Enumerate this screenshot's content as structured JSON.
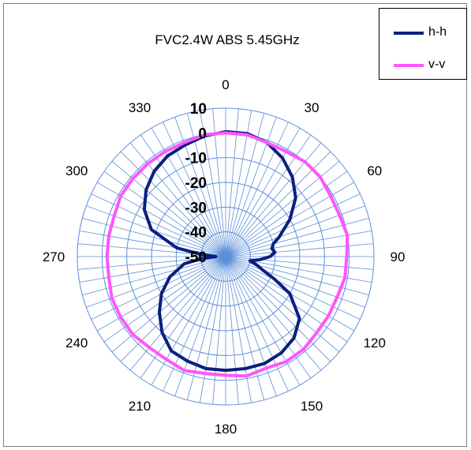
{
  "chart_data": {
    "type": "polar-line",
    "title": "FVC2.4W ABS 5.45GHz",
    "angle_labels": [
      "0",
      "30",
      "60",
      "90",
      "120",
      "150",
      "180",
      "210",
      "240",
      "270",
      "300",
      "330"
    ],
    "radial_labels": [
      "10",
      "0",
      "-10",
      "-20",
      "-30",
      "-40",
      "-50"
    ],
    "radial_range": [
      -50,
      10
    ],
    "grid": true,
    "legend_position": "top-right",
    "series": [
      {
        "name": "h-h",
        "color": "#0b1f7e",
        "angles": [
          0,
          10,
          20,
          30,
          40,
          50,
          60,
          70,
          75,
          80,
          85,
          90,
          95,
          100,
          105,
          110,
          115,
          120,
          130,
          140,
          150,
          160,
          170,
          180,
          190,
          200,
          210,
          220,
          230,
          240,
          250,
          260,
          265,
          270,
          275,
          280,
          290,
          300,
          310,
          320,
          330,
          340,
          350
        ],
        "values": [
          0.5,
          0.5,
          -1,
          -4,
          -8,
          -13,
          -20,
          -27,
          -30,
          -31,
          -30,
          -32,
          -36,
          -40,
          -37,
          -34,
          -28,
          -20,
          -11,
          -7,
          -5,
          -4,
          -4,
          -4,
          -4,
          -5,
          -6,
          -10,
          -15,
          -20,
          -26,
          -33,
          -40,
          -46,
          -40,
          -30,
          -18,
          -12,
          -8,
          -5,
          -3,
          -2,
          -0.5
        ]
      },
      {
        "name": "v-v",
        "color": "#ff55ff",
        "angles": [
          0,
          10,
          20,
          30,
          40,
          50,
          60,
          70,
          80,
          90,
          100,
          110,
          120,
          130,
          140,
          150,
          160,
          170,
          180,
          190,
          200,
          210,
          220,
          230,
          240,
          250,
          260,
          270,
          280,
          290,
          300,
          310,
          320,
          330,
          340,
          350
        ],
        "values": [
          0,
          0,
          -1,
          -1,
          0,
          0,
          -1,
          -1,
          0,
          -1,
          -1,
          -2,
          -2,
          -2,
          -1,
          -1,
          -2,
          -1,
          -2,
          -2,
          -1,
          -2,
          -2,
          -1,
          -1,
          -1,
          -2,
          -2,
          -2,
          -2,
          -1,
          -1,
          -1,
          -1,
          -1,
          0
        ]
      }
    ]
  }
}
